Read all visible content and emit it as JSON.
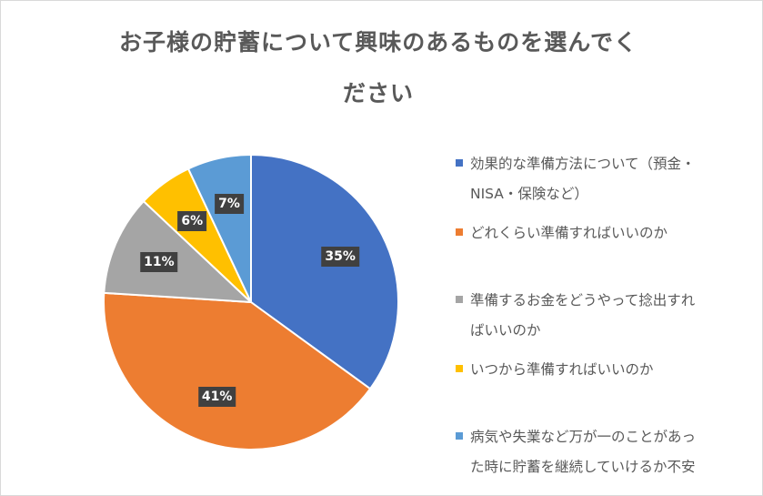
{
  "chart_data": {
    "type": "pie",
    "title": "お子様の貯蓄について興味のあるものを選んでください",
    "title_lines": [
      "お子様の貯蓄について興味のあるものを選んでく",
      "ださい"
    ],
    "legend_position": "right",
    "slices": [
      {
        "name_lines": [
          "効果的な準備方法について（預金・",
          "NISA・保険など）"
        ],
        "value": 35,
        "label": "35%",
        "color": "#4472C4"
      },
      {
        "name_lines": [
          "どれくらい準備すればいいのか"
        ],
        "value": 41,
        "label": "41%",
        "color": "#ED7D31"
      },
      {
        "name_lines": [
          "準備するお金をどうやって捻出すれ",
          "ばいいのか"
        ],
        "value": 11,
        "label": "11%",
        "color": "#A5A5A5"
      },
      {
        "name_lines": [
          "いつから準備すればいいのか"
        ],
        "value": 6,
        "label": "6%",
        "color": "#FFC000"
      },
      {
        "name_lines": [
          "病気や失業など万が一のことがあっ",
          "た時に貯蓄を継続していけるか不安"
        ],
        "value": 7,
        "label": "7%",
        "color": "#5B9BD5"
      }
    ]
  }
}
